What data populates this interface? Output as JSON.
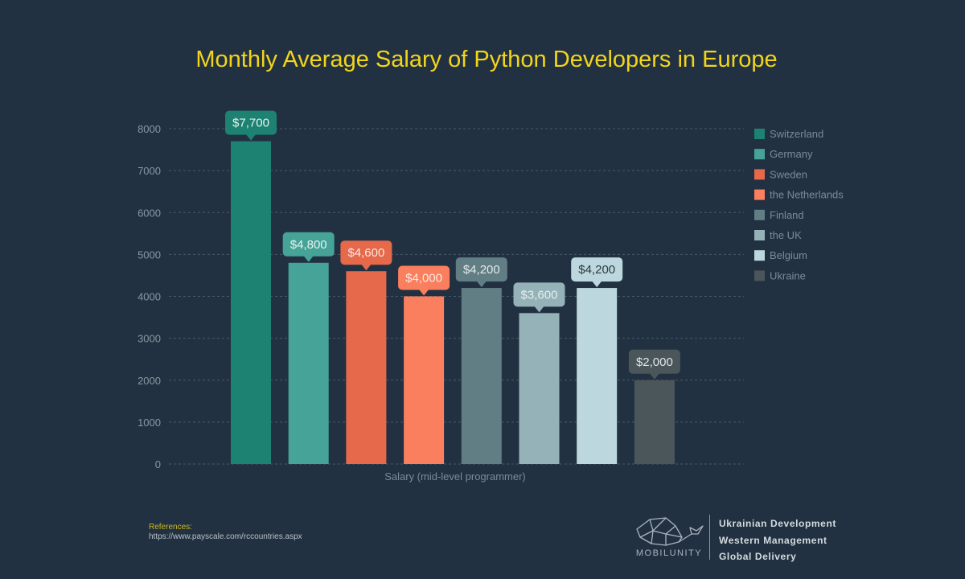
{
  "chart_data": {
    "type": "bar",
    "title": "Monthly Average Salary of Python Developers in Europe",
    "xlabel": "Salary (mid-level programmer)",
    "ylabel": "",
    "ylim": [
      0,
      8000
    ],
    "yticks": [
      0,
      1000,
      2000,
      3000,
      4000,
      5000,
      6000,
      7000,
      8000
    ],
    "grid": true,
    "legend_position": "right",
    "categories": [
      "Switzerland",
      "Germany",
      "Sweden",
      "the Netherlands",
      "Finland",
      "the UK",
      "Belgium",
      "Ukraine"
    ],
    "values": [
      7700,
      4800,
      4600,
      4000,
      4200,
      3600,
      4200,
      2000
    ],
    "data_labels": [
      "$7,700",
      "$4,800",
      "$4,600",
      "$4,000",
      "$4,200",
      "$3,600",
      "$4,200",
      "$2,000"
    ],
    "colors": [
      "#1d8272",
      "#45a497",
      "#e5694a",
      "#fa7f5e",
      "#627e85",
      "#95b2b8",
      "#bcd7de",
      "#4a5659"
    ],
    "label_text_colors": [
      "#e8f2f0",
      "#e8f2f0",
      "#fbe9e4",
      "#fbe9e4",
      "#e3eaec",
      "#e6eef0",
      "#2d3a44",
      "#e0e6e8"
    ]
  },
  "references": {
    "title": "References:",
    "url": "https://www.payscale.com/rccountries.aspx"
  },
  "branding": {
    "logo_name": "MOBILUNITY",
    "tagline": [
      "Ukrainian Development",
      "Western Management",
      "Global Delivery"
    ]
  }
}
